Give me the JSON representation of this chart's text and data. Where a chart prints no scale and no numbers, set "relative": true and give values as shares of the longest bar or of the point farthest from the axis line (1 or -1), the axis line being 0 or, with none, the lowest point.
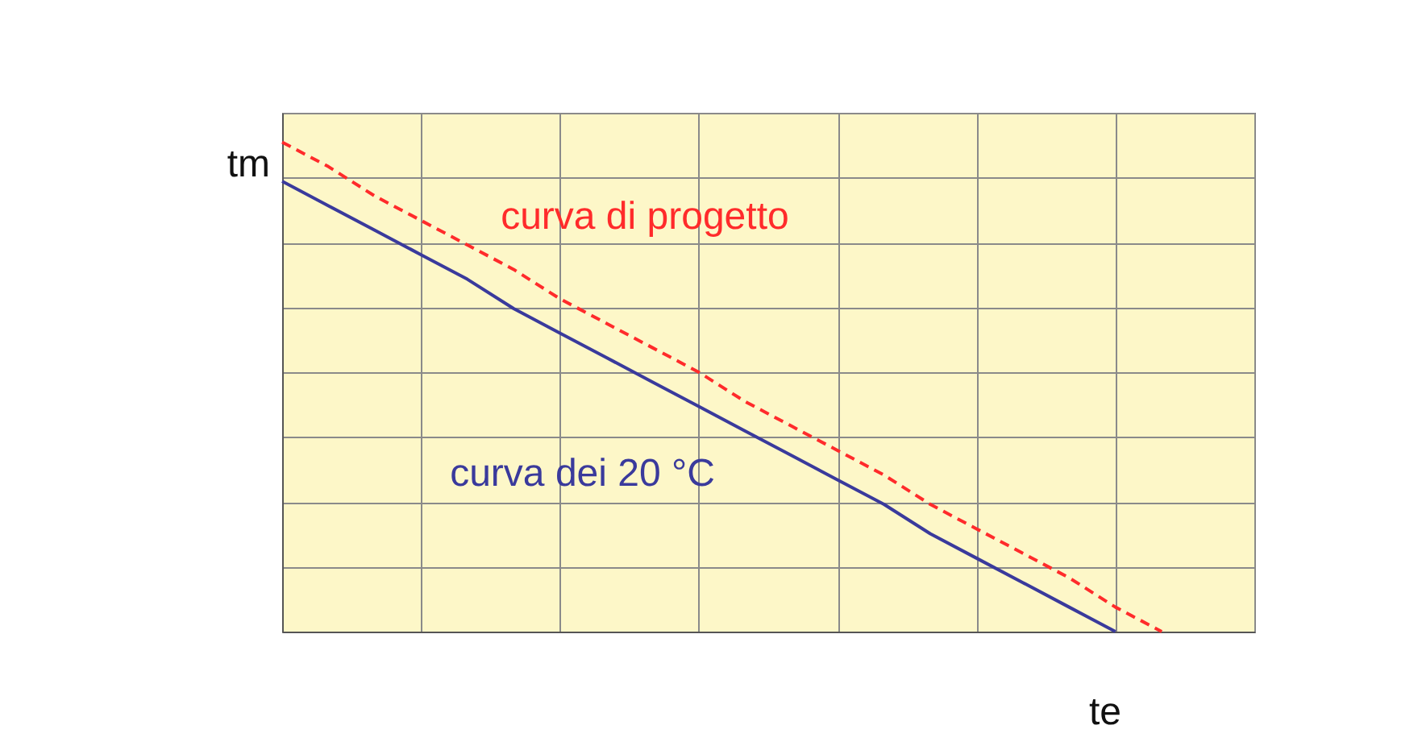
{
  "chart_data": {
    "type": "line",
    "relative": true,
    "xlabel": "te",
    "ylabel": "tm",
    "grid": true,
    "legend": false,
    "marker": "none",
    "categories": [
      null,
      null,
      null,
      null,
      null,
      null,
      null,
      null,
      null,
      null,
      null,
      null,
      null,
      null,
      null,
      null,
      null,
      null,
      null,
      null,
      null,
      null
    ],
    "series": [
      {
        "name": "curva di progetto",
        "color": "#ff2b2b",
        "line_style": "dashed",
        "values": [
          1,
          0.95,
          0.89,
          0.84,
          0.79,
          0.74,
          0.68,
          0.63,
          0.58,
          0.53,
          0.47,
          0.42,
          0.37,
          0.32,
          0.26,
          0.21,
          0.16,
          0.11,
          0.05,
          0,
          null,
          null
        ]
      },
      {
        "name": "curva dei 20 °C",
        "color": "#3a3a9c",
        "line_style": "solid",
        "values": [
          0.92,
          0.87,
          0.82,
          0.77,
          0.72,
          0.66,
          0.61,
          0.56,
          0.51,
          0.46,
          0.41,
          0.36,
          0.31,
          0.26,
          0.2,
          0.15,
          0.1,
          0.05,
          0,
          null,
          null,
          null
        ]
      }
    ]
  }
}
